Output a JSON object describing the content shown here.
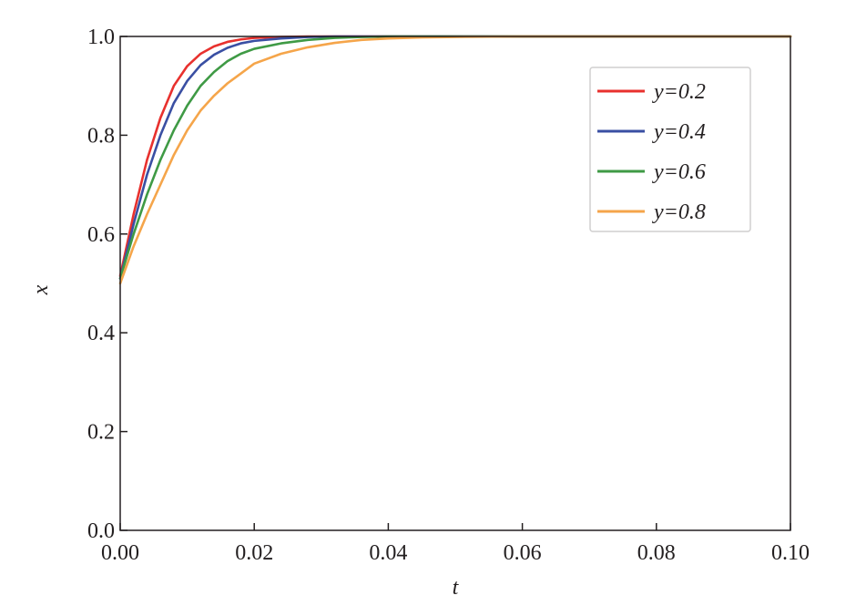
{
  "chart_data": {
    "type": "line",
    "xlabel": "t",
    "ylabel": "x",
    "xlim": [
      0.0,
      0.1
    ],
    "ylim": [
      0.0,
      1.0
    ],
    "xticks": [
      "0.00",
      "0.02",
      "0.04",
      "0.06",
      "0.08",
      "0.10"
    ],
    "yticks": [
      "0.0",
      "0.2",
      "0.4",
      "0.6",
      "0.8",
      "1.0"
    ],
    "grid": false,
    "legend_position": "top-right",
    "x": [
      0.0,
      0.002,
      0.004,
      0.006,
      0.008,
      0.01,
      0.012,
      0.014,
      0.016,
      0.018,
      0.02,
      0.024,
      0.028,
      0.032,
      0.036,
      0.04,
      0.045,
      0.05,
      0.06,
      0.08,
      0.1
    ],
    "series": [
      {
        "name": "y=0.2",
        "color": "#e8312e",
        "values": [
          0.515,
          0.64,
          0.75,
          0.835,
          0.9,
          0.94,
          0.965,
          0.98,
          0.989,
          0.994,
          0.997,
          0.999,
          1.0,
          1.0,
          1.0,
          1.0,
          1.0,
          1.0,
          1.0,
          1.0,
          1.0
        ]
      },
      {
        "name": "y=0.4",
        "color": "#3a4fa3",
        "values": [
          0.51,
          0.62,
          0.72,
          0.8,
          0.865,
          0.91,
          0.942,
          0.963,
          0.977,
          0.986,
          0.991,
          0.996,
          0.999,
          1.0,
          1.0,
          1.0,
          1.0,
          1.0,
          1.0,
          1.0,
          1.0
        ]
      },
      {
        "name": "y=0.6",
        "color": "#3f9a45",
        "values": [
          0.51,
          0.6,
          0.68,
          0.75,
          0.81,
          0.86,
          0.9,
          0.928,
          0.95,
          0.965,
          0.975,
          0.986,
          0.993,
          0.997,
          0.999,
          1.0,
          1.0,
          1.0,
          1.0,
          1.0,
          1.0
        ]
      },
      {
        "name": "y=0.8",
        "color": "#f5a54a",
        "values": [
          0.5,
          0.575,
          0.64,
          0.7,
          0.76,
          0.81,
          0.85,
          0.88,
          0.905,
          0.925,
          0.945,
          0.965,
          0.978,
          0.987,
          0.993,
          0.996,
          0.998,
          0.999,
          1.0,
          1.0,
          1.0
        ]
      }
    ]
  }
}
